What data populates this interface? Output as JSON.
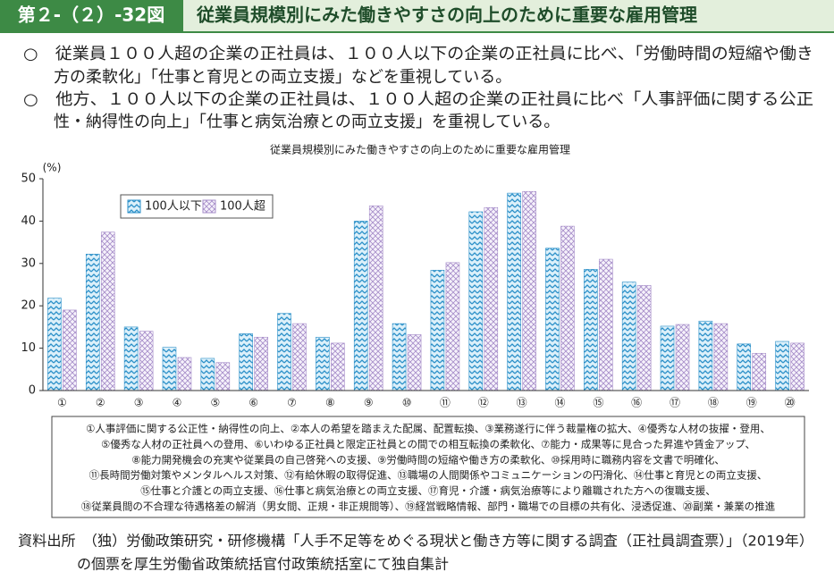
{
  "header": {
    "figure_no": "第２-（２）-32図",
    "title": "従業員規模別にみた働きやすさの向上のために重要な雇用管理"
  },
  "summary": [
    "○　従業員１００人超の企業の正社員は、１００人以下の企業の正社員に比べ、「労働時間の短縮や働き",
    "方の柔軟化」「仕事と育児との両立支援」などを重視している。",
    "○　他方、１００人以下の企業の正社員は、１００人超の企業の正社員に比べ「人事評価に関する公正",
    "性・納得性の向上」「仕事と病気治療との両立支援」を重視している。"
  ],
  "chart_data": {
    "type": "bar",
    "title": "従業員規模別にみた働きやすさの向上のために重要な雇用管理",
    "y_label": "(%)",
    "categories": [
      "①",
      "②",
      "③",
      "④",
      "⑤",
      "⑥",
      "⑦",
      "⑧",
      "⑨",
      "⑩",
      "⑪",
      "⑫",
      "⑬",
      "⑭",
      "⑮",
      "⑯",
      "⑰",
      "⑱",
      "⑲",
      "⑳"
    ],
    "series": [
      {
        "name": "100人以下",
        "color": "#2a8fc8",
        "values": [
          21.8,
          32.2,
          15.0,
          10.2,
          7.6,
          13.4,
          18.2,
          12.6,
          40.0,
          15.8,
          28.4,
          42.2,
          46.6,
          33.6,
          28.6,
          25.6,
          15.2,
          16.4,
          11.0,
          11.6
        ]
      },
      {
        "name": "100人超",
        "color": "#a58cc8",
        "values": [
          19.0,
          37.4,
          14.0,
          7.8,
          6.6,
          12.6,
          15.8,
          11.2,
          43.6,
          13.2,
          30.2,
          43.2,
          47.0,
          38.8,
          31.0,
          24.8,
          15.6,
          15.8,
          8.8,
          11.2
        ]
      }
    ],
    "ylim": [
      0,
      50
    ],
    "yticks": [
      0,
      10,
      20,
      30,
      40,
      50
    ],
    "grid": false,
    "legend": "top-left"
  },
  "notes": [
    "①人事評価に関する公正性・納得性の向上、②本人の希望を踏まえた配属、配置転換、③業務遂行に伴う裁量権の拡大、④優秀な人材の抜擢・登用、",
    "⑤優秀な人材の正社員への登用、⑥いわゆる正社員と限定正社員との間での相互転換の柔軟化、⑦能力・成果等に見合った昇進や賃金アップ、",
    "⑧能力開発機会の充実や従業員の自己啓発への支援、⑨労働時間の短縮や働き方の柔軟化、⑩採用時に職務内容を文書で明確化、",
    "⑪長時間労働対策やメンタルヘルス対策、⑫有給休暇の取得促進、⑬職場の人間関係やコミュニケーションの円滑化、⑭仕事と育児との両立支援、",
    "⑮仕事と介護との両立支援、⑯仕事と病気治療との両立支援、⑰育児・介護・病気治療等により離職された方への復職支援、",
    "⑱従業員間の不合理な待遇格差の解消（男女間、正規・非正規間等）、⑲経営戦略情報、部門・職場での目標の共有化、浸透促進、⑳副業・兼業の推進"
  ],
  "source": [
    "資料出所　（独）労働政策研究・研修機構「人手不足等をめぐる現状と働き方等に関する調査（正社員調査票）」（2019年）",
    "の個票を厚生労働省政策統括官付政策統括室にて独自集計"
  ]
}
